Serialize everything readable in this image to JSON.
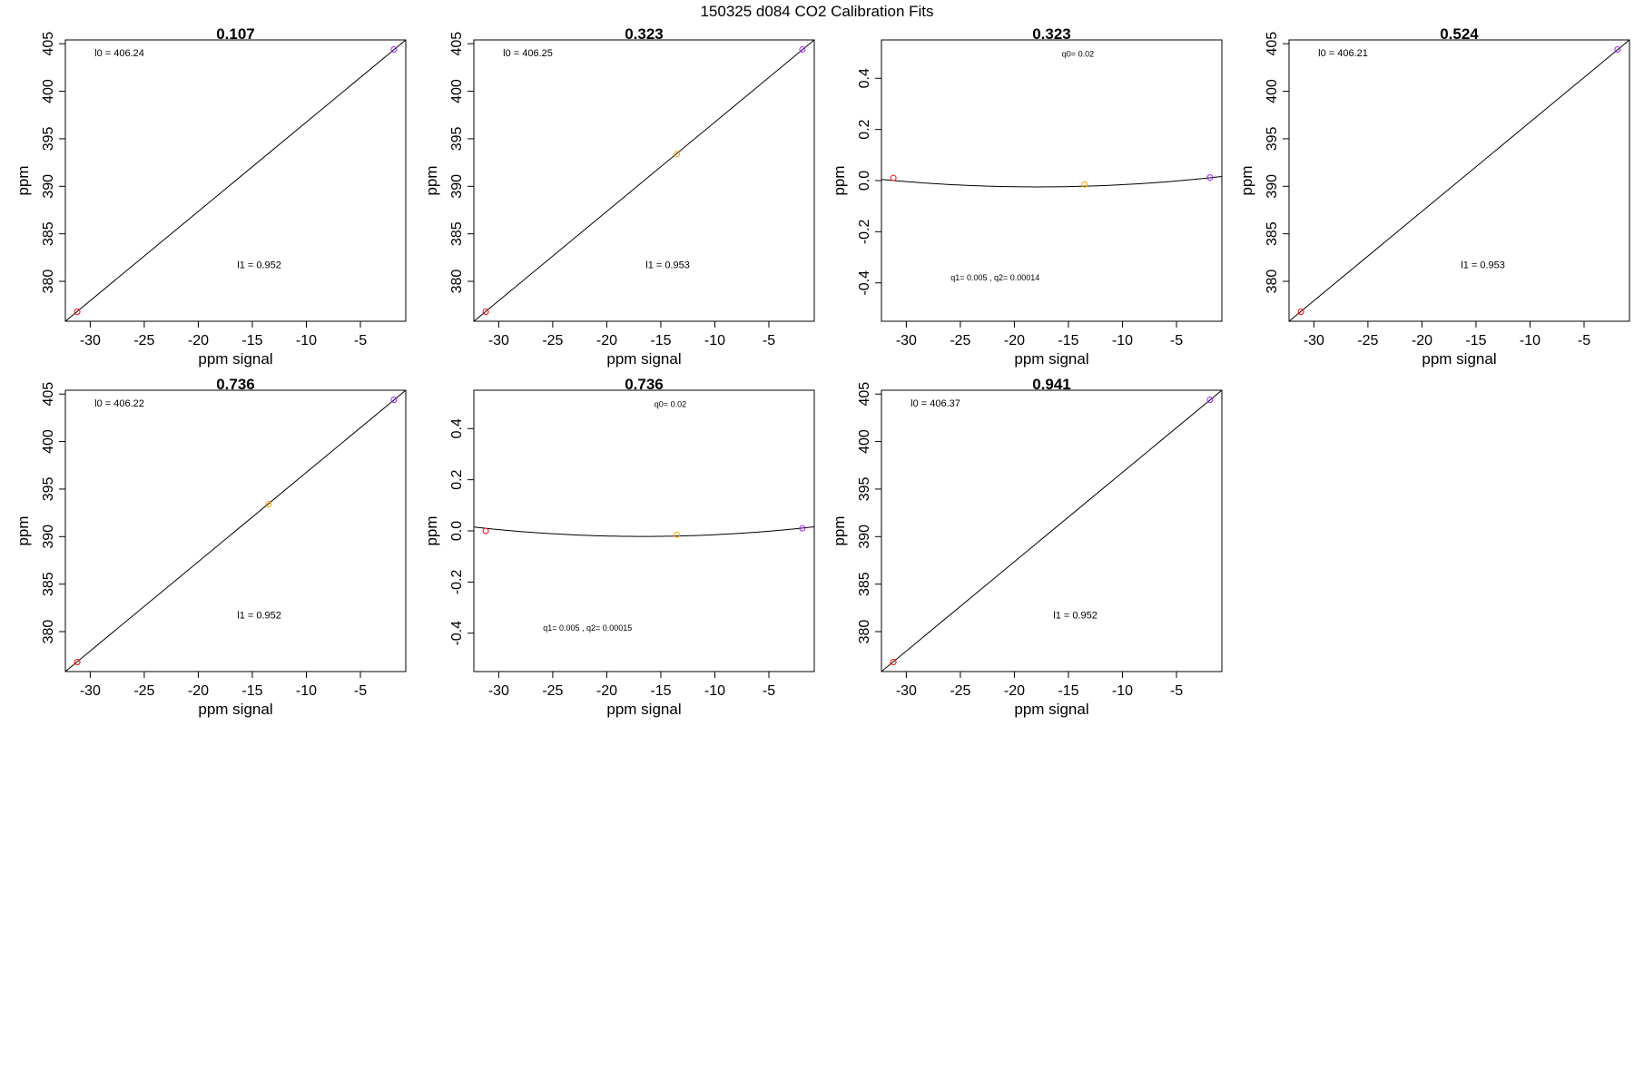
{
  "page": {
    "title": "150325   d084   CO2 Calibration Fits"
  },
  "colors": {
    "low": "#ff0000",
    "mid": "#ffa500",
    "high": "#a020f0",
    "line": "#000000"
  },
  "chart_data": [
    {
      "type": "scatter",
      "fit": "linear",
      "title": "0.107",
      "xlabel": "ppm signal",
      "ylabel": "ppm",
      "xlim": [
        -32.3,
        -0.8
      ],
      "ylim": [
        375.8,
        405.4
      ],
      "xticks": [
        -30,
        -25,
        -20,
        -15,
        -10,
        -5
      ],
      "yticks": [
        380,
        385,
        390,
        395,
        400,
        405
      ],
      "points": [
        {
          "x": -31.2,
          "y": 376.8,
          "color": "low"
        },
        {
          "x": -1.9,
          "y": 404.4,
          "color": "high"
        }
      ],
      "fit_line": [
        [
          -32.3,
          375.8
        ],
        [
          -0.8,
          405.4
        ]
      ],
      "annotations": [
        {
          "text": "l0 =  406.24",
          "x": -29.6,
          "y": 403.7
        },
        {
          "text": "l1 =  0.952",
          "x": -16.4,
          "y": 381.4
        }
      ]
    },
    {
      "type": "scatter",
      "fit": "linear",
      "title": "0.323",
      "xlabel": "ppm signal",
      "ylabel": "ppm",
      "xlim": [
        -32.3,
        -0.8
      ],
      "ylim": [
        375.8,
        405.4
      ],
      "xticks": [
        -30,
        -25,
        -20,
        -15,
        -10,
        -5
      ],
      "yticks": [
        380,
        385,
        390,
        395,
        400,
        405
      ],
      "points": [
        {
          "x": -31.2,
          "y": 376.8,
          "color": "low"
        },
        {
          "x": -13.5,
          "y": 393.4,
          "color": "mid"
        },
        {
          "x": -1.9,
          "y": 404.4,
          "color": "high"
        }
      ],
      "fit_line": [
        [
          -32.3,
          375.8
        ],
        [
          -0.8,
          405.4
        ]
      ],
      "annotations": [
        {
          "text": "l0 =  406.25",
          "x": -29.6,
          "y": 403.7
        },
        {
          "text": "l1 =  0.953",
          "x": -16.4,
          "y": 381.4
        }
      ]
    },
    {
      "type": "scatter",
      "fit": "quadratic",
      "title": "0.323",
      "xlabel": "ppm signal",
      "ylabel": "ppm",
      "xlim": [
        -32.3,
        -0.8
      ],
      "ylim": [
        -0.55,
        0.55
      ],
      "xticks": [
        -30,
        -25,
        -20,
        -15,
        -10,
        -5
      ],
      "yticks": [
        -0.4,
        -0.2,
        0.0,
        0.2,
        0.4
      ],
      "ytick_labels": [
        "-0.4",
        "-0.2",
        "0.0",
        "0.2",
        "0.4"
      ],
      "points": [
        {
          "x": -31.2,
          "y": 0.01,
          "color": "low"
        },
        {
          "x": -13.5,
          "y": -0.015,
          "color": "mid"
        },
        {
          "x": -1.9,
          "y": 0.012,
          "color": "high"
        }
      ],
      "quad": {
        "q0": 0.02,
        "q1": 0.005,
        "q2": 0.00014
      },
      "annotations": [
        {
          "text": "q0= 0.02",
          "x": -15.6,
          "y": 0.485,
          "size": "small"
        },
        {
          "text": "q1= 0.005 , q2= 0.00014",
          "x": -25.9,
          "y": -0.39,
          "size": "small"
        }
      ]
    },
    {
      "type": "scatter",
      "fit": "linear",
      "title": "0.524",
      "xlabel": "ppm signal",
      "ylabel": "ppm",
      "xlim": [
        -32.3,
        -0.8
      ],
      "ylim": [
        375.8,
        405.4
      ],
      "xticks": [
        -30,
        -25,
        -20,
        -15,
        -10,
        -5
      ],
      "yticks": [
        380,
        385,
        390,
        395,
        400,
        405
      ],
      "points": [
        {
          "x": -31.2,
          "y": 376.8,
          "color": "low"
        },
        {
          "x": -1.9,
          "y": 404.4,
          "color": "high"
        }
      ],
      "fit_line": [
        [
          -32.3,
          375.8
        ],
        [
          -0.8,
          405.4
        ]
      ],
      "annotations": [
        {
          "text": "l0 =  406.21",
          "x": -29.6,
          "y": 403.7
        },
        {
          "text": "l1 =  0.953",
          "x": -16.4,
          "y": 381.4
        }
      ]
    },
    {
      "type": "scatter",
      "fit": "linear",
      "title": "0.736",
      "xlabel": "ppm signal",
      "ylabel": "ppm",
      "xlim": [
        -32.3,
        -0.8
      ],
      "ylim": [
        375.8,
        405.4
      ],
      "xticks": [
        -30,
        -25,
        -20,
        -15,
        -10,
        -5
      ],
      "yticks": [
        380,
        385,
        390,
        395,
        400,
        405
      ],
      "points": [
        {
          "x": -31.2,
          "y": 376.8,
          "color": "low"
        },
        {
          "x": -13.5,
          "y": 393.4,
          "color": "mid"
        },
        {
          "x": -1.9,
          "y": 404.4,
          "color": "high"
        }
      ],
      "fit_line": [
        [
          -32.3,
          375.8
        ],
        [
          -0.8,
          405.4
        ]
      ],
      "annotations": [
        {
          "text": "l0 =  406.22",
          "x": -29.6,
          "y": 403.7
        },
        {
          "text": "l1 =  0.952",
          "x": -16.4,
          "y": 381.4
        }
      ]
    },
    {
      "type": "scatter",
      "fit": "quadratic",
      "title": "0.736",
      "xlabel": "ppm signal",
      "ylabel": "ppm",
      "xlim": [
        -32.3,
        -0.8
      ],
      "ylim": [
        -0.55,
        0.55
      ],
      "xticks": [
        -30,
        -25,
        -20,
        -15,
        -10,
        -5
      ],
      "yticks": [
        -0.4,
        -0.2,
        0.0,
        0.2,
        0.4
      ],
      "ytick_labels": [
        "-0.4",
        "-0.2",
        "0.0",
        "0.2",
        "0.4"
      ],
      "points": [
        {
          "x": -31.2,
          "y": 0.0,
          "color": "low"
        },
        {
          "x": -13.5,
          "y": -0.015,
          "color": "mid"
        },
        {
          "x": -1.9,
          "y": 0.01,
          "color": "high"
        }
      ],
      "quad": {
        "q0": 0.02,
        "q1": 0.005,
        "q2": 0.00015
      },
      "annotations": [
        {
          "text": "q0= 0.02",
          "x": -15.6,
          "y": 0.485,
          "size": "small"
        },
        {
          "text": "q1= 0.005 , q2= 0.00015",
          "x": -25.9,
          "y": -0.39,
          "size": "small"
        }
      ]
    },
    {
      "type": "scatter",
      "fit": "linear",
      "title": "0.941",
      "xlabel": "ppm signal",
      "ylabel": "ppm",
      "xlim": [
        -32.3,
        -0.8
      ],
      "ylim": [
        375.8,
        405.4
      ],
      "xticks": [
        -30,
        -25,
        -20,
        -15,
        -10,
        -5
      ],
      "yticks": [
        380,
        385,
        390,
        395,
        400,
        405
      ],
      "points": [
        {
          "x": -31.2,
          "y": 376.8,
          "color": "low"
        },
        {
          "x": -1.9,
          "y": 404.4,
          "color": "high"
        }
      ],
      "fit_line": [
        [
          -32.3,
          375.8
        ],
        [
          -0.8,
          405.4
        ]
      ],
      "annotations": [
        {
          "text": "l0 =  406.37",
          "x": -29.6,
          "y": 403.7
        },
        {
          "text": "l1 =  0.952",
          "x": -16.4,
          "y": 381.4
        }
      ]
    }
  ]
}
